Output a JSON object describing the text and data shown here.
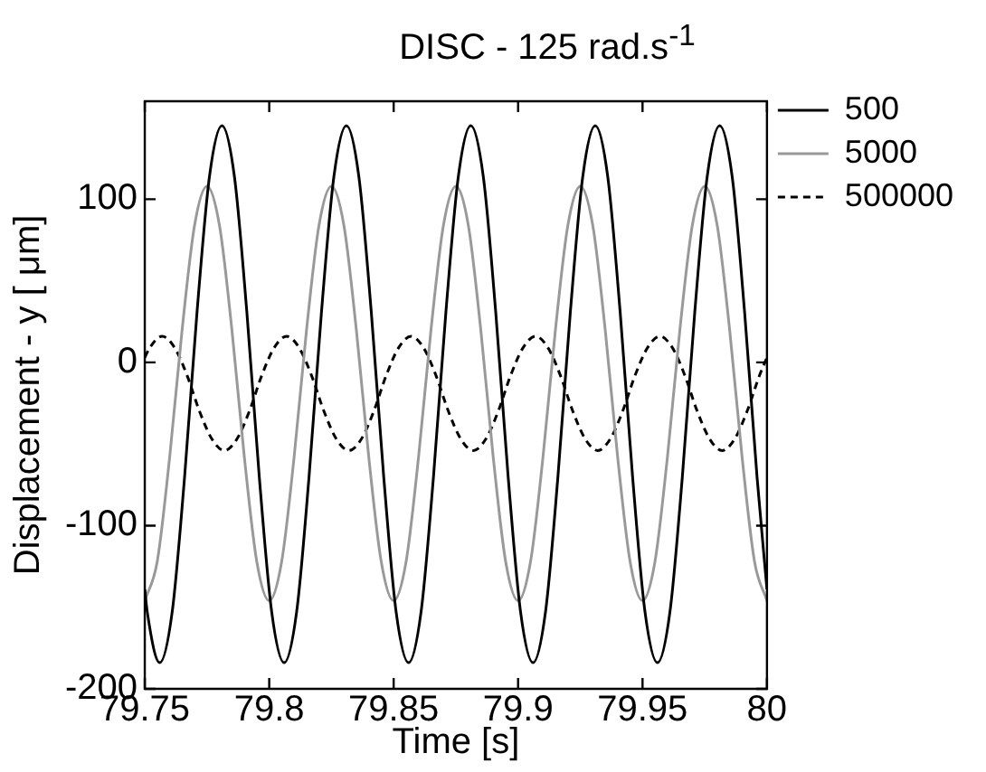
{
  "chart_data": {
    "type": "line",
    "title": "DISC - 125 rad.s$^{-1}$",
    "xlabel": "Time [s]",
    "ylabel": "Displacement - y [ μm]",
    "xlim": [
      79.75,
      80
    ],
    "xticks": [
      79.75,
      79.8,
      79.85,
      79.9,
      79.95,
      80
    ],
    "ylim": [
      -200,
      160
    ],
    "yticks": [
      -200,
      -100,
      0,
      100
    ],
    "grid": false,
    "legend": "top right",
    "marker": "none",
    "series": [
      {
        "name": "500",
        "color": "#000000",
        "line_style": "solid",
        "x": [
          79.75,
          79.751,
          79.756,
          79.761,
          79.766,
          79.771,
          79.776,
          79.781,
          79.786,
          79.791,
          79.796,
          79.801,
          79.806,
          79.811,
          79.816,
          79.821,
          79.826,
          79.831,
          79.836,
          79.841,
          79.846,
          79.851,
          79.856,
          79.861,
          79.866,
          79.871,
          79.876,
          79.881,
          79.886,
          79.891,
          79.896,
          79.901,
          79.906,
          79.911,
          79.916,
          79.921,
          79.926,
          79.931,
          79.936,
          79.941,
          79.946,
          79.951,
          79.956,
          79.961,
          79.966,
          79.971,
          79.976,
          79.981,
          79.986,
          79.991,
          79.996,
          80
        ],
        "values": [
          -139,
          -153,
          -184,
          -153,
          -70,
          31,
          114,
          145,
          114,
          31,
          -70,
          -153,
          -184,
          -153,
          -70,
          31,
          114,
          145,
          114,
          31,
          -70,
          -153,
          -184,
          -153,
          -70,
          31,
          114,
          145,
          114,
          31,
          -70,
          -153,
          -184,
          -153,
          -70,
          31,
          114,
          145,
          114,
          31,
          -70,
          -153,
          -184,
          -153,
          -70,
          31,
          114,
          145,
          114,
          31,
          -70,
          -139
        ]
      },
      {
        "name": "5000",
        "color": "#999999",
        "line_style": "solid",
        "x": [
          79.75,
          79.755,
          79.76,
          79.765,
          79.77,
          79.775,
          79.78,
          79.785,
          79.79,
          79.795,
          79.8,
          79.805,
          79.81,
          79.815,
          79.82,
          79.825,
          79.83,
          79.835,
          79.84,
          79.845,
          79.85,
          79.855,
          79.86,
          79.865,
          79.87,
          79.875,
          79.88,
          79.885,
          79.89,
          79.895,
          79.9,
          79.905,
          79.91,
          79.915,
          79.92,
          79.925,
          79.93,
          79.935,
          79.94,
          79.945,
          79.95,
          79.955,
          79.96,
          79.965,
          79.97,
          79.975,
          79.98,
          79.985,
          79.99,
          79.995,
          80
        ],
        "values": [
          -146,
          -122,
          -58,
          20,
          84,
          108,
          84,
          20,
          -58,
          -122,
          -146,
          -122,
          -58,
          20,
          84,
          108,
          84,
          20,
          -58,
          -122,
          -146,
          -122,
          -58,
          20,
          84,
          108,
          84,
          20,
          -58,
          -122,
          -146,
          -122,
          -58,
          20,
          84,
          108,
          84,
          20,
          -58,
          -122,
          -146,
          -122,
          -58,
          20,
          84,
          108,
          84,
          20,
          -58,
          -122,
          -146
        ]
      },
      {
        "name": "500000",
        "color": "#000000",
        "line_style": "dashed",
        "x": [
          79.75,
          79.752,
          79.757,
          79.762,
          79.767,
          79.772,
          79.777,
          79.782,
          79.787,
          79.792,
          79.797,
          79.802,
          79.807,
          79.812,
          79.817,
          79.822,
          79.827,
          79.832,
          79.837,
          79.842,
          79.847,
          79.852,
          79.857,
          79.862,
          79.867,
          79.872,
          79.877,
          79.882,
          79.887,
          79.892,
          79.897,
          79.902,
          79.907,
          79.912,
          79.917,
          79.922,
          79.927,
          79.932,
          79.937,
          79.942,
          79.947,
          79.952,
          79.957,
          79.962,
          79.967,
          79.972,
          79.977,
          79.982,
          79.987,
          79.992,
          79.997,
          80
        ],
        "values": [
          3,
          9,
          16,
          9,
          -8,
          -30,
          -47,
          -54,
          -47,
          -30,
          -8,
          9,
          16,
          9,
          -8,
          -30,
          -47,
          -54,
          -47,
          -30,
          -8,
          9,
          16,
          9,
          -8,
          -30,
          -47,
          -54,
          -47,
          -30,
          -8,
          9,
          16,
          9,
          -8,
          -30,
          -47,
          -54,
          -47,
          -30,
          -8,
          9,
          16,
          9,
          -8,
          -30,
          -47,
          -54,
          -47,
          -30,
          -8,
          3
        ]
      }
    ]
  }
}
